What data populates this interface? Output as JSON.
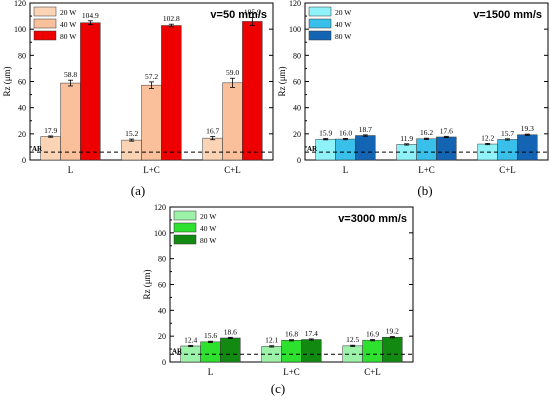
{
  "chart_data": [
    {
      "type": "bar",
      "panel_label": "(a)",
      "title": "v=50 mm/s",
      "ylabel": "Rz (μm)",
      "ylim": [
        0,
        120
      ],
      "yticks": [
        "0",
        "20",
        "40",
        "60",
        "80",
        "100",
        "120"
      ],
      "categories": [
        "L",
        "L+C",
        "C+L"
      ],
      "reference_line": {
        "label": "AR",
        "value": 6
      },
      "legend_position": "top-left",
      "series": [
        {
          "name": "20 W",
          "color": "#fbd4b6",
          "values": [
            17.9,
            15.2,
            16.7
          ],
          "errors": [
            0.5,
            0.8,
            1.2
          ],
          "labels": [
            "17.9",
            "15.2",
            "16.7"
          ]
        },
        {
          "name": "40 W",
          "color": "#f9c09b",
          "values": [
            58.8,
            57.2,
            59.0
          ],
          "errors": [
            2.2,
            2.5,
            3.5
          ],
          "labels": [
            "58.8",
            "57.2",
            "59.0"
          ]
        },
        {
          "name": "80 W",
          "color": "#ef0000",
          "values": [
            104.9,
            102.8,
            105.9
          ],
          "errors": [
            1.5,
            1.0,
            3.0
          ],
          "labels": [
            "104.9",
            "102.8",
            "105.9"
          ]
        }
      ]
    },
    {
      "type": "bar",
      "panel_label": "(b)",
      "title": "v=1500 mm/s",
      "ylabel": "Rz (μm)",
      "ylim": [
        0,
        120
      ],
      "yticks": [
        "0",
        "20",
        "40",
        "60",
        "80",
        "100",
        "120"
      ],
      "categories": [
        "L",
        "L+C",
        "C+L"
      ],
      "reference_line": {
        "label": "AR",
        "value": 6
      },
      "legend_position": "top-left",
      "series": [
        {
          "name": "20 W",
          "color": "#8ef2f8",
          "values": [
            15.9,
            11.9,
            12.2
          ],
          "errors": [
            0.5,
            0.5,
            0.5
          ],
          "labels": [
            "15.9",
            "11.9",
            "12.2"
          ]
        },
        {
          "name": "40 W",
          "color": "#38c0ea",
          "values": [
            16.0,
            16.2,
            15.7
          ],
          "errors": [
            0.5,
            0.5,
            0.5
          ],
          "labels": [
            "16.0",
            "16.2",
            "15.7"
          ]
        },
        {
          "name": "80 W",
          "color": "#1464b4",
          "values": [
            18.7,
            17.6,
            19.3
          ],
          "errors": [
            0.5,
            0.5,
            0.5
          ],
          "labels": [
            "18.7",
            "17.6",
            "19.3"
          ]
        }
      ]
    },
    {
      "type": "bar",
      "panel_label": "(c)",
      "title": "v=3000 mm/s",
      "ylabel": "Rz (μm)",
      "ylim": [
        0,
        120
      ],
      "yticks": [
        "0",
        "20",
        "40",
        "60",
        "80",
        "100",
        "120"
      ],
      "categories": [
        "L",
        "L+C",
        "C+L"
      ],
      "reference_line": {
        "label": "AR",
        "value": 6
      },
      "legend_position": "top-left",
      "series": [
        {
          "name": "20 W",
          "color": "#9cf2a8",
          "values": [
            12.4,
            12.1,
            12.5
          ],
          "errors": [
            0.5,
            0.5,
            0.5
          ],
          "labels": [
            "12.4",
            "12.1",
            "12.5"
          ]
        },
        {
          "name": "40 W",
          "color": "#2ee12e",
          "values": [
            15.6,
            16.8,
            16.9
          ],
          "errors": [
            0.5,
            0.5,
            0.5
          ],
          "labels": [
            "15.6",
            "16.8",
            "16.9"
          ]
        },
        {
          "name": "80 W",
          "color": "#128a12",
          "values": [
            18.6,
            17.4,
            19.2
          ],
          "errors": [
            0.5,
            0.5,
            0.5
          ],
          "labels": [
            "18.6",
            "17.4",
            "19.2"
          ]
        }
      ]
    }
  ]
}
